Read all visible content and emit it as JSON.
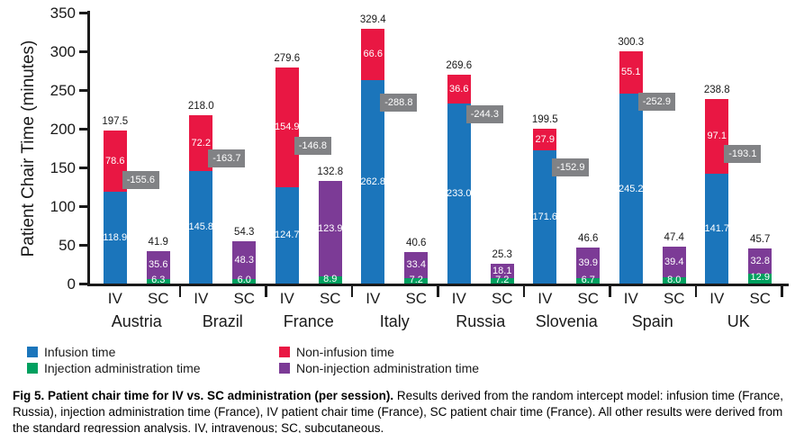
{
  "figure": {
    "caption_bold": "Fig 5. Patient chair time for IV vs. SC administration (per session).",
    "caption_rest": "Results derived from the random intercept model: infusion time (France, Russia), injection administration time (France), IV patient chair time (France), SC patient chair time (France). All other results were derived from the standard regression analysis. IV, intravenous; SC, subcutaneous."
  },
  "chart_data": {
    "type": "bar",
    "stacked": true,
    "title": "",
    "ylabel": "Patient Chair Time (minutes)",
    "xlabel": "",
    "ylim": [
      0,
      350
    ],
    "ytick_step": 50,
    "grid": false,
    "legend_position": "bottom",
    "bar_pair_labels": [
      "IV",
      "SC"
    ],
    "colors": {
      "infusion": "#1B75BB",
      "non_infusion": "#E91743",
      "injection": "#00A05F",
      "non_injection": "#7C3B96",
      "diff_label": "#818285"
    },
    "legend": [
      {
        "name": "Infusion time",
        "color": "#1B75BB"
      },
      {
        "name": "Non-infusion time",
        "color": "#E91743"
      },
      {
        "name": "Injection administration time",
        "color": "#00A05F"
      },
      {
        "name": "Non-injection administration time",
        "color": "#7C3B96"
      }
    ],
    "countries": [
      {
        "name": "Austria",
        "iv_infusion": 118.9,
        "iv_non_infusion": 78.6,
        "iv_total": 197.5,
        "sc_injection": 6.3,
        "sc_non_injection": 35.6,
        "sc_total": 41.9,
        "difference": -155.6,
        "diff_label_y": 134
      },
      {
        "name": "Brazil",
        "iv_infusion": 145.8,
        "iv_non_infusion": 72.2,
        "iv_total": 218.0,
        "sc_injection": 6.0,
        "sc_non_injection": 48.3,
        "sc_total": 54.3,
        "difference": -163.7,
        "diff_label_y": 162
      },
      {
        "name": "France",
        "iv_infusion": 124.7,
        "iv_non_infusion": 154.9,
        "iv_total": 279.6,
        "sc_injection": 8.9,
        "sc_non_injection": 123.9,
        "sc_total": 132.8,
        "difference": -146.8,
        "diff_label_y": 178
      },
      {
        "name": "Italy",
        "iv_infusion": 262.8,
        "iv_non_infusion": 66.6,
        "iv_total": 329.4,
        "sc_injection": 7.2,
        "sc_non_injection": 33.4,
        "sc_total": 40.6,
        "difference": -288.8,
        "diff_label_y": 234
      },
      {
        "name": "Russia",
        "iv_infusion": 233.0,
        "iv_non_infusion": 36.6,
        "iv_total": 269.6,
        "sc_injection": 7.2,
        "sc_non_injection": 18.1,
        "sc_total": 25.3,
        "difference": -244.3,
        "diff_label_y": 219
      },
      {
        "name": "Slovenia",
        "iv_infusion": 171.6,
        "iv_non_infusion": 27.9,
        "iv_total": 199.5,
        "sc_injection": 6.7,
        "sc_non_injection": 39.9,
        "sc_total": 46.6,
        "difference": -152.9,
        "diff_label_y": 150
      },
      {
        "name": "Spain",
        "iv_infusion": 245.2,
        "iv_non_infusion": 55.1,
        "iv_total": 300.3,
        "sc_injection": 8.0,
        "sc_non_injection": 39.4,
        "sc_total": 47.4,
        "difference": -252.9,
        "diff_label_y": 235
      },
      {
        "name": "UK",
        "iv_infusion": 141.7,
        "iv_non_infusion": 97.1,
        "iv_total": 238.8,
        "sc_injection": 12.9,
        "sc_non_injection": 32.8,
        "sc_total": 45.7,
        "difference": -193.1,
        "diff_label_y": 167
      }
    ]
  }
}
